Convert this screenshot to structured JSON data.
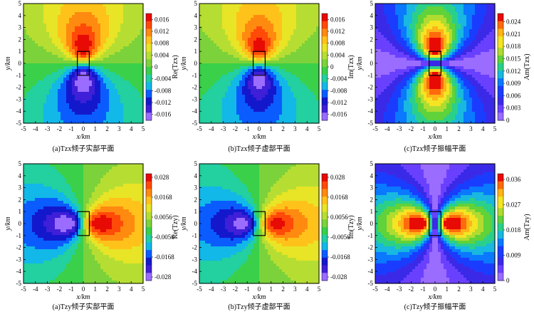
{
  "colors": {
    "scale": [
      "#9a6cff",
      "#3f1fd8",
      "#1418cc",
      "#0a5cff",
      "#12b8e8",
      "#22d0a0",
      "#3ad04a",
      "#7cd23a",
      "#b6de32",
      "#e8e426",
      "#ffc21a",
      "#ff8a10",
      "#ff4a08",
      "#e80a05"
    ],
    "amp_scale": [
      "#9a6cff",
      "#6a40ff",
      "#3a2ae8",
      "#1a3cff",
      "#0a78ff",
      "#18b8e0",
      "#2ad08a",
      "#60d23a",
      "#b0dc30",
      "#f4e424",
      "#ffb418",
      "#ff6a0c",
      "#e80a05"
    ]
  },
  "x_label": "x/km",
  "y_label": "y/km",
  "chart_data": [
    {
      "type": "heatmap",
      "component": "real",
      "field": "Tzx",
      "xlim": [
        -5,
        5
      ],
      "ylim": [
        -5,
        5
      ],
      "x_ticks": [
        "-5",
        "-4",
        "-3",
        "-2",
        "-1",
        "0",
        "1",
        "2",
        "3",
        "4",
        "5"
      ],
      "y_ticks": [
        "5",
        "4",
        "3",
        "2",
        "1",
        "0",
        "-1",
        "-2",
        "-3",
        "-4",
        "-5"
      ],
      "colorbar_ticks": [
        "0.016",
        "0.012",
        "0.008",
        "0.004",
        "0",
        "-0.004",
        "-0.008",
        "-0.012",
        "-0.016"
      ],
      "vmin": -0.018,
      "vmax": 0.018,
      "colorbar_label": "Re(Tzx)",
      "caption": "(a)Tzx倾子实部平面",
      "peak": 0.018,
      "body": {
        "x": [
          -0.5,
          0.5
        ],
        "y": [
          -1,
          1
        ]
      }
    },
    {
      "type": "heatmap",
      "component": "imag",
      "field": "Tzx",
      "xlim": [
        -5,
        5
      ],
      "ylim": [
        -5,
        5
      ],
      "x_ticks": [
        "-5",
        "-4",
        "-3",
        "-2",
        "-1",
        "0",
        "1",
        "2",
        "3",
        "4",
        "5"
      ],
      "y_ticks": [
        "5",
        "4",
        "3",
        "2",
        "1",
        "0",
        "-1",
        "-2",
        "-3",
        "-4",
        "-5"
      ],
      "colorbar_ticks": [
        "0.016",
        "0.012",
        "0.008",
        "0.004",
        "0",
        "-0.004",
        "-0.008",
        "-0.012",
        "-0.016"
      ],
      "vmin": -0.018,
      "vmax": 0.018,
      "colorbar_label": "Im(Tzx)",
      "caption": "(b)Tzx倾子虚部平面",
      "peak": 0.017,
      "body": {
        "x": [
          -0.5,
          0.5
        ],
        "y": [
          -1,
          1
        ]
      }
    },
    {
      "type": "heatmap",
      "component": "amp",
      "field": "Tzx",
      "xlim": [
        -5,
        5
      ],
      "ylim": [
        -5,
        5
      ],
      "x_ticks": [
        "-5",
        "-4",
        "-3",
        "-2",
        "-1",
        "0",
        "1",
        "2",
        "3",
        "4",
        "5"
      ],
      "y_ticks": [
        "5",
        "4",
        "3",
        "2",
        "1",
        "0",
        "-1",
        "-2",
        "-3",
        "-4",
        "-5"
      ],
      "colorbar_ticks": [
        "0.024",
        "0.021",
        "0.018",
        "0.015",
        "0.012",
        "0.009",
        "0.006",
        "0.003",
        "0"
      ],
      "vmin": 0,
      "vmax": 0.026,
      "colorbar_label": "Am(Tzx)",
      "caption": "(c)Tzx倾子振幅平面",
      "peak": 0.026,
      "body": {
        "x": [
          -0.5,
          0.5
        ],
        "y": [
          -1,
          1
        ]
      }
    },
    {
      "type": "heatmap",
      "component": "real",
      "field": "Tzy",
      "xlim": [
        -5,
        5
      ],
      "ylim": [
        -5,
        5
      ],
      "x_ticks": [
        "-5",
        "-4",
        "-3",
        "-2",
        "-1",
        "0",
        "1",
        "2",
        "3",
        "4",
        "5"
      ],
      "y_ticks": [
        "5",
        "4",
        "3",
        "2",
        "1",
        "0",
        "-1",
        "-2",
        "-3",
        "-4",
        "-5"
      ],
      "colorbar_ticks": [
        "0.028",
        "0.0168",
        "0.0056",
        "-0.0056",
        "-0.0168",
        "-0.028"
      ],
      "vmin": -0.03,
      "vmax": 0.03,
      "colorbar_label": "Re(Tzy)",
      "caption": "(a)Tzy倾子实部平面",
      "peak": 0.03,
      "body": {
        "x": [
          -0.5,
          0.5
        ],
        "y": [
          -1,
          1
        ]
      }
    },
    {
      "type": "heatmap",
      "component": "imag",
      "field": "Tzy",
      "xlim": [
        -5,
        5
      ],
      "ylim": [
        -5,
        5
      ],
      "x_ticks": [
        "-5",
        "-4",
        "-3",
        "-2",
        "-1",
        "0",
        "1",
        "2",
        "3",
        "4",
        "5"
      ],
      "y_ticks": [
        "5",
        "4",
        "3",
        "2",
        "1",
        "0",
        "-1",
        "-2",
        "-3",
        "-4",
        "-5"
      ],
      "colorbar_ticks": [
        "0.028",
        "0.0168",
        "0.0056",
        "-0.0056",
        "-0.0168",
        "-0.028"
      ],
      "vmin": -0.03,
      "vmax": 0.03,
      "colorbar_label": "Im(Tzy)",
      "caption": "(b)Tzy倾子虚部平面",
      "peak": 0.028,
      "body": {
        "x": [
          -0.5,
          0.5
        ],
        "y": [
          -1,
          1
        ]
      }
    },
    {
      "type": "heatmap",
      "component": "amp",
      "field": "Tzy",
      "xlim": [
        -5,
        5
      ],
      "ylim": [
        -5,
        5
      ],
      "x_ticks": [
        "-5",
        "-4",
        "-3",
        "-2",
        "-1",
        "0",
        "1",
        "2",
        "3",
        "4",
        "5"
      ],
      "y_ticks": [
        "5",
        "4",
        "3",
        "2",
        "1",
        "0",
        "-1",
        "-2",
        "-3",
        "-4",
        "-5"
      ],
      "colorbar_ticks": [
        "0.036",
        "0.027",
        "0.018",
        "0.009",
        "0"
      ],
      "vmin": 0,
      "vmax": 0.038,
      "colorbar_label": "Am(Tzy)",
      "caption": "(c)Tzy倾子振幅平面",
      "peak": 0.038,
      "body": {
        "x": [
          -0.5,
          0.5
        ],
        "y": [
          -1,
          1
        ]
      }
    }
  ]
}
